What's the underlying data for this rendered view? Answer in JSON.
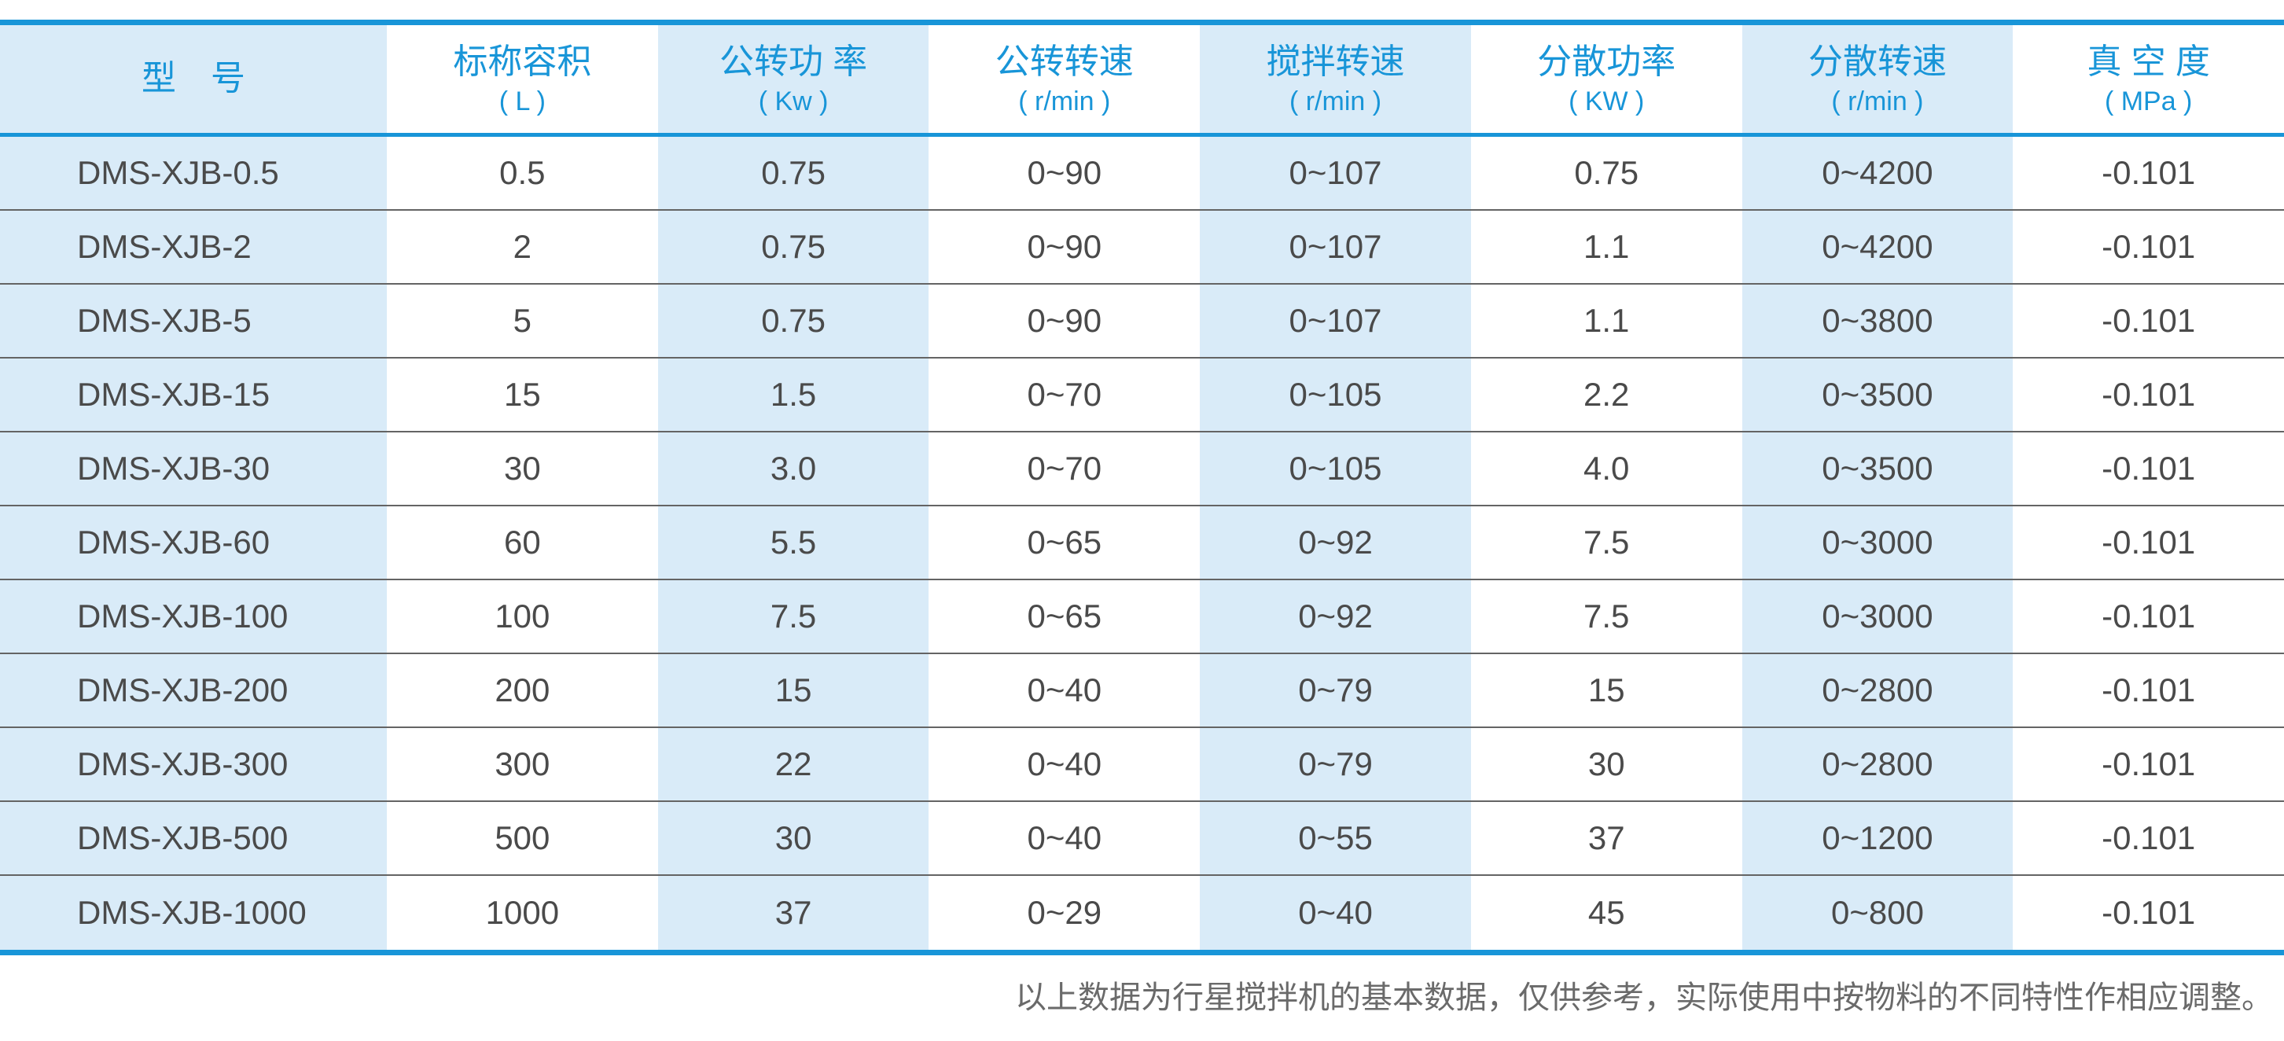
{
  "colors": {
    "accent": "#1895d8",
    "tint": "#d9ebf8",
    "ink": "#4a4a4a",
    "line": "#646464",
    "note": "#6a6a6a"
  },
  "table": {
    "tinted_columns": [
      0,
      2,
      4,
      6
    ],
    "columns": [
      {
        "key": "model",
        "label": "型　号",
        "unit": ""
      },
      {
        "key": "capacity",
        "label": "标称容积",
        "unit": "( L )"
      },
      {
        "key": "revolution-power",
        "label": "公转功 率",
        "unit": "( Kw )"
      },
      {
        "key": "revolution-speed",
        "label": "公转转速",
        "unit": "( r/min )"
      },
      {
        "key": "stirring-speed",
        "label": "搅拌转速",
        "unit": "( r/min )"
      },
      {
        "key": "dispersion-power",
        "label": "分散功率",
        "unit": "( KW )"
      },
      {
        "key": "dispersion-speed",
        "label": "分散转速",
        "unit": "( r/min )"
      },
      {
        "key": "vacuum",
        "label": "真 空 度",
        "unit": "( MPa )"
      }
    ],
    "rows": [
      [
        "DMS-XJB-0.5",
        "0.5",
        "0.75",
        "0~90",
        "0~107",
        "0.75",
        "0~4200",
        "-0.101"
      ],
      [
        "DMS-XJB-2",
        "2",
        "0.75",
        "0~90",
        "0~107",
        "1.1",
        "0~4200",
        "-0.101"
      ],
      [
        "DMS-XJB-5",
        "5",
        "0.75",
        "0~90",
        "0~107",
        "1.1",
        "0~3800",
        "-0.101"
      ],
      [
        "DMS-XJB-15",
        "15",
        "1.5",
        "0~70",
        "0~105",
        "2.2",
        "0~3500",
        "-0.101"
      ],
      [
        "DMS-XJB-30",
        "30",
        "3.0",
        "0~70",
        "0~105",
        "4.0",
        "0~3500",
        "-0.101"
      ],
      [
        "DMS-XJB-60",
        "60",
        "5.5",
        "0~65",
        "0~92",
        "7.5",
        "0~3000",
        "-0.101"
      ],
      [
        "DMS-XJB-100",
        "100",
        "7.5",
        "0~65",
        "0~92",
        "7.5",
        "0~3000",
        "-0.101"
      ],
      [
        "DMS-XJB-200",
        "200",
        "15",
        "0~40",
        "0~79",
        "15",
        "0~2800",
        "-0.101"
      ],
      [
        "DMS-XJB-300",
        "300",
        "22",
        "0~40",
        "0~79",
        "30",
        "0~2800",
        "-0.101"
      ],
      [
        "DMS-XJB-500",
        "500",
        "30",
        "0~40",
        "0~55",
        "37",
        "0~1200",
        "-0.101"
      ],
      [
        "DMS-XJB-1000",
        "1000",
        "37",
        "0~29",
        "0~40",
        "45",
        "0~800",
        "-0.101"
      ]
    ]
  },
  "footnote": "以上数据为行星搅拌机的基本数据，仅供参考，实际使用中按物料的不同特性作相应调整。"
}
